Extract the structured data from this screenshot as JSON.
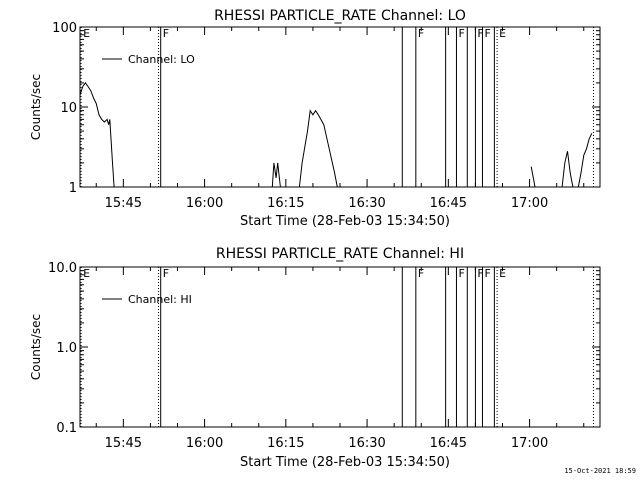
{
  "timestamp": "15-Oct-2021 18:59",
  "chart_data": [
    {
      "type": "line",
      "title": "RHESSI PARTICLE_RATE Channel: LO",
      "xlabel": "Start Time (28-Feb-03 15:34:50)",
      "ylabel": "Counts/sec",
      "yscale": "log",
      "xlim": [
        "15:37",
        "17:13"
      ],
      "ylim": [
        1,
        100
      ],
      "xticks": [
        "15:45",
        "16:00",
        "16:15",
        "16:30",
        "16:45",
        "17:00"
      ],
      "yticks": [
        "1",
        "10",
        "100"
      ],
      "legend": {
        "position": "top-left",
        "entries": [
          "Channel: LO"
        ]
      },
      "series": [
        {
          "name": "Channel: LO",
          "segments": [
            [
              [
                "15:37.0",
                14
              ],
              [
                "15:37.5",
                18
              ],
              [
                "15:38.0",
                20
              ],
              [
                "15:38.5",
                18
              ],
              [
                "15:39.0",
                16
              ],
              [
                "15:39.5",
                13
              ],
              [
                "15:40.0",
                11
              ],
              [
                "15:40.5",
                8
              ],
              [
                "15:41.0",
                7
              ],
              [
                "15:41.5",
                6.5
              ],
              [
                "15:42.0",
                7
              ],
              [
                "15:42.3",
                6
              ],
              [
                "15:42.5",
                7
              ],
              [
                "15:43.0",
                2
              ],
              [
                "15:43.3",
                1
              ]
            ],
            [
              [
                "16:12.5",
                1
              ],
              [
                "16:12.8",
                2
              ],
              [
                "16:13.2",
                1.3
              ],
              [
                "16:13.5",
                2
              ],
              [
                "16:14.0",
                1
              ]
            ],
            [
              [
                "16:17.5",
                1
              ],
              [
                "16:18.0",
                2
              ],
              [
                "16:19.0",
                5
              ],
              [
                "16:19.5",
                9
              ],
              [
                "16:20.0",
                8
              ],
              [
                "16:20.5",
                9
              ],
              [
                "16:21.0",
                8
              ],
              [
                "16:22.0",
                6
              ],
              [
                "16:23.0",
                3
              ],
              [
                "16:24.0",
                1.5
              ],
              [
                "16:24.5",
                1
              ]
            ],
            [
              [
                "17:00.3",
                1.8
              ],
              [
                "17:01.0",
                1
              ]
            ],
            [
              [
                "17:06.0",
                1
              ],
              [
                "17:06.5",
                2
              ],
              [
                "17:07.0",
                2.8
              ],
              [
                "17:07.5",
                1.5
              ],
              [
                "17:08.0",
                1
              ]
            ],
            [
              [
                "17:09.0",
                1
              ],
              [
                "17:09.5",
                1.5
              ],
              [
                "17:10.0",
                2.5
              ],
              [
                "17:10.5",
                3
              ],
              [
                "17:11.0",
                4
              ],
              [
                "17:11.5",
                4.7
              ]
            ]
          ]
        }
      ]
    },
    {
      "type": "line",
      "title": "RHESSI PARTICLE_RATE Channel: HI",
      "xlabel": "Start Time (28-Feb-03 15:34:50)",
      "ylabel": "Counts/sec",
      "yscale": "log",
      "xlim": [
        "15:37",
        "17:13"
      ],
      "ylim": [
        0.1,
        10
      ],
      "xticks": [
        "15:45",
        "16:00",
        "16:15",
        "16:30",
        "16:45",
        "17:00"
      ],
      "yticks": [
        "0.1",
        "1.0",
        "10.0"
      ],
      "legend": {
        "position": "top-left",
        "entries": [
          "Channel: HI"
        ]
      },
      "series": [
        {
          "name": "Channel: HI",
          "segments": []
        }
      ]
    }
  ],
  "markers": [
    {
      "time": "15:37.2",
      "label": "E",
      "style": "dotted"
    },
    {
      "time": "15:51.5",
      "label": "",
      "style": "dotted"
    },
    {
      "time": "15:51.9",
      "label": "F",
      "style": "solid"
    },
    {
      "time": "16:36.5",
      "label": "",
      "style": "solid"
    },
    {
      "time": "16:39.0",
      "label": "F",
      "style": "solid"
    },
    {
      "time": "16:44.5",
      "label": "",
      "style": "solid"
    },
    {
      "time": "16:46.5",
      "label": "F",
      "style": "solid"
    },
    {
      "time": "16:48.5",
      "label": "",
      "style": "solid"
    },
    {
      "time": "16:50.0",
      "label": "F",
      "style": "solid"
    },
    {
      "time": "16:51.3",
      "label": "F",
      "style": "solid"
    },
    {
      "time": "16:53.5",
      "label": "",
      "style": "solid"
    },
    {
      "time": "16:54.0",
      "label": "E",
      "style": "dotted"
    },
    {
      "time": "17:11.8",
      "label": "",
      "style": "dotted"
    }
  ]
}
